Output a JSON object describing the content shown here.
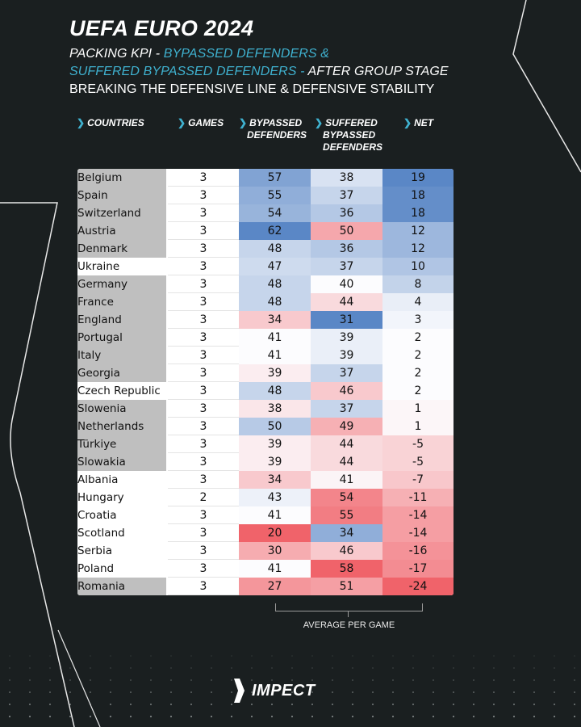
{
  "header": {
    "title": "UEFA EURO 2024",
    "line1_prefix": "PACKING KPI - ",
    "line1_accent": "BYPASSED DEFENDERS &",
    "line2_accent": "SUFFERED BYPASSED DEFENDERS - ",
    "line2_suffix": "AFTER GROUP STAGE",
    "line3": "BREAKING THE DEFENSIVE LINE & DEFENSIVE STABILITY"
  },
  "columns": {
    "countries": "COUNTRIES",
    "games": "GAMES",
    "bypassed_1": "BYPASSED",
    "bypassed_2": "DEFENDERS",
    "suffered_1": "SUFFERED",
    "suffered_2": "BYPASSED",
    "suffered_3": "DEFENDERS",
    "net": "NET"
  },
  "footer": {
    "bracket_label": "AVERAGE PER GAME",
    "brand": "IMPECT"
  },
  "colors": {
    "accent": "#3fb1cf",
    "background": "#1a1f20",
    "blue": "#5a87c6",
    "red": "#f0636a",
    "neutral": "#ffffff",
    "gray_cell": "#bfbfbf"
  },
  "chart_data": {
    "type": "table",
    "title": "UEFA EURO 2024",
    "columns": [
      "COUNTRIES",
      "GAMES",
      "BYPASSED DEFENDERS",
      "SUFFERED BYPASSED DEFENDERS",
      "NET"
    ],
    "rows": [
      {
        "country": "Belgium",
        "games": 3,
        "bypassed": 57,
        "suffered": 38,
        "net": 19,
        "gray": true
      },
      {
        "country": "Spain",
        "games": 3,
        "bypassed": 55,
        "suffered": 37,
        "net": 18,
        "gray": true
      },
      {
        "country": "Switzerland",
        "games": 3,
        "bypassed": 54,
        "suffered": 36,
        "net": 18,
        "gray": true
      },
      {
        "country": "Austria",
        "games": 3,
        "bypassed": 62,
        "suffered": 50,
        "net": 12,
        "gray": true
      },
      {
        "country": "Denmark",
        "games": 3,
        "bypassed": 48,
        "suffered": 36,
        "net": 12,
        "gray": true
      },
      {
        "country": "Ukraine",
        "games": 3,
        "bypassed": 47,
        "suffered": 37,
        "net": 10,
        "gray": false
      },
      {
        "country": "Germany",
        "games": 3,
        "bypassed": 48,
        "suffered": 40,
        "net": 8,
        "gray": true
      },
      {
        "country": "France",
        "games": 3,
        "bypassed": 48,
        "suffered": 44,
        "net": 4,
        "gray": true
      },
      {
        "country": "England",
        "games": 3,
        "bypassed": 34,
        "suffered": 31,
        "net": 3,
        "gray": true
      },
      {
        "country": "Portugal",
        "games": 3,
        "bypassed": 41,
        "suffered": 39,
        "net": 2,
        "gray": true
      },
      {
        "country": "Italy",
        "games": 3,
        "bypassed": 41,
        "suffered": 39,
        "net": 2,
        "gray": true
      },
      {
        "country": "Georgia",
        "games": 3,
        "bypassed": 39,
        "suffered": 37,
        "net": 2,
        "gray": true
      },
      {
        "country": "Czech Republic",
        "games": 3,
        "bypassed": 48,
        "suffered": 46,
        "net": 2,
        "gray": false
      },
      {
        "country": "Slowenia",
        "games": 3,
        "bypassed": 38,
        "suffered": 37,
        "net": 1,
        "gray": true
      },
      {
        "country": "Netherlands",
        "games": 3,
        "bypassed": 50,
        "suffered": 49,
        "net": 1,
        "gray": true
      },
      {
        "country": "Türkiye",
        "games": 3,
        "bypassed": 39,
        "suffered": 44,
        "net": -5,
        "gray": true
      },
      {
        "country": "Slowakia",
        "games": 3,
        "bypassed": 39,
        "suffered": 44,
        "net": -5,
        "gray": true
      },
      {
        "country": "Albania",
        "games": 3,
        "bypassed": 34,
        "suffered": 41,
        "net": -7,
        "gray": false
      },
      {
        "country": "Hungary",
        "games": 2,
        "bypassed": 43,
        "suffered": 54,
        "net": -11,
        "gray": false
      },
      {
        "country": "Croatia",
        "games": 3,
        "bypassed": 41,
        "suffered": 55,
        "net": -14,
        "gray": false
      },
      {
        "country": "Scotland",
        "games": 3,
        "bypassed": 20,
        "suffered": 34,
        "net": -14,
        "gray": false
      },
      {
        "country": "Serbia",
        "games": 3,
        "bypassed": 30,
        "suffered": 46,
        "net": -16,
        "gray": false
      },
      {
        "country": "Poland",
        "games": 3,
        "bypassed": 41,
        "suffered": 58,
        "net": -17,
        "gray": false
      },
      {
        "country": "Romania",
        "games": 3,
        "bypassed": 27,
        "suffered": 51,
        "net": -24,
        "gray": true
      }
    ],
    "color_scale": {
      "bypassed": {
        "min": 20,
        "mid": 41,
        "max": 62,
        "low_color": "red",
        "high_color": "blue"
      },
      "suffered": {
        "min": 31,
        "mid": 40,
        "max": 58,
        "low_color": "blue",
        "high_color": "red"
      },
      "net": {
        "min": -24,
        "mid": 2,
        "max": 19,
        "low_color": "red",
        "high_color": "blue"
      }
    }
  }
}
